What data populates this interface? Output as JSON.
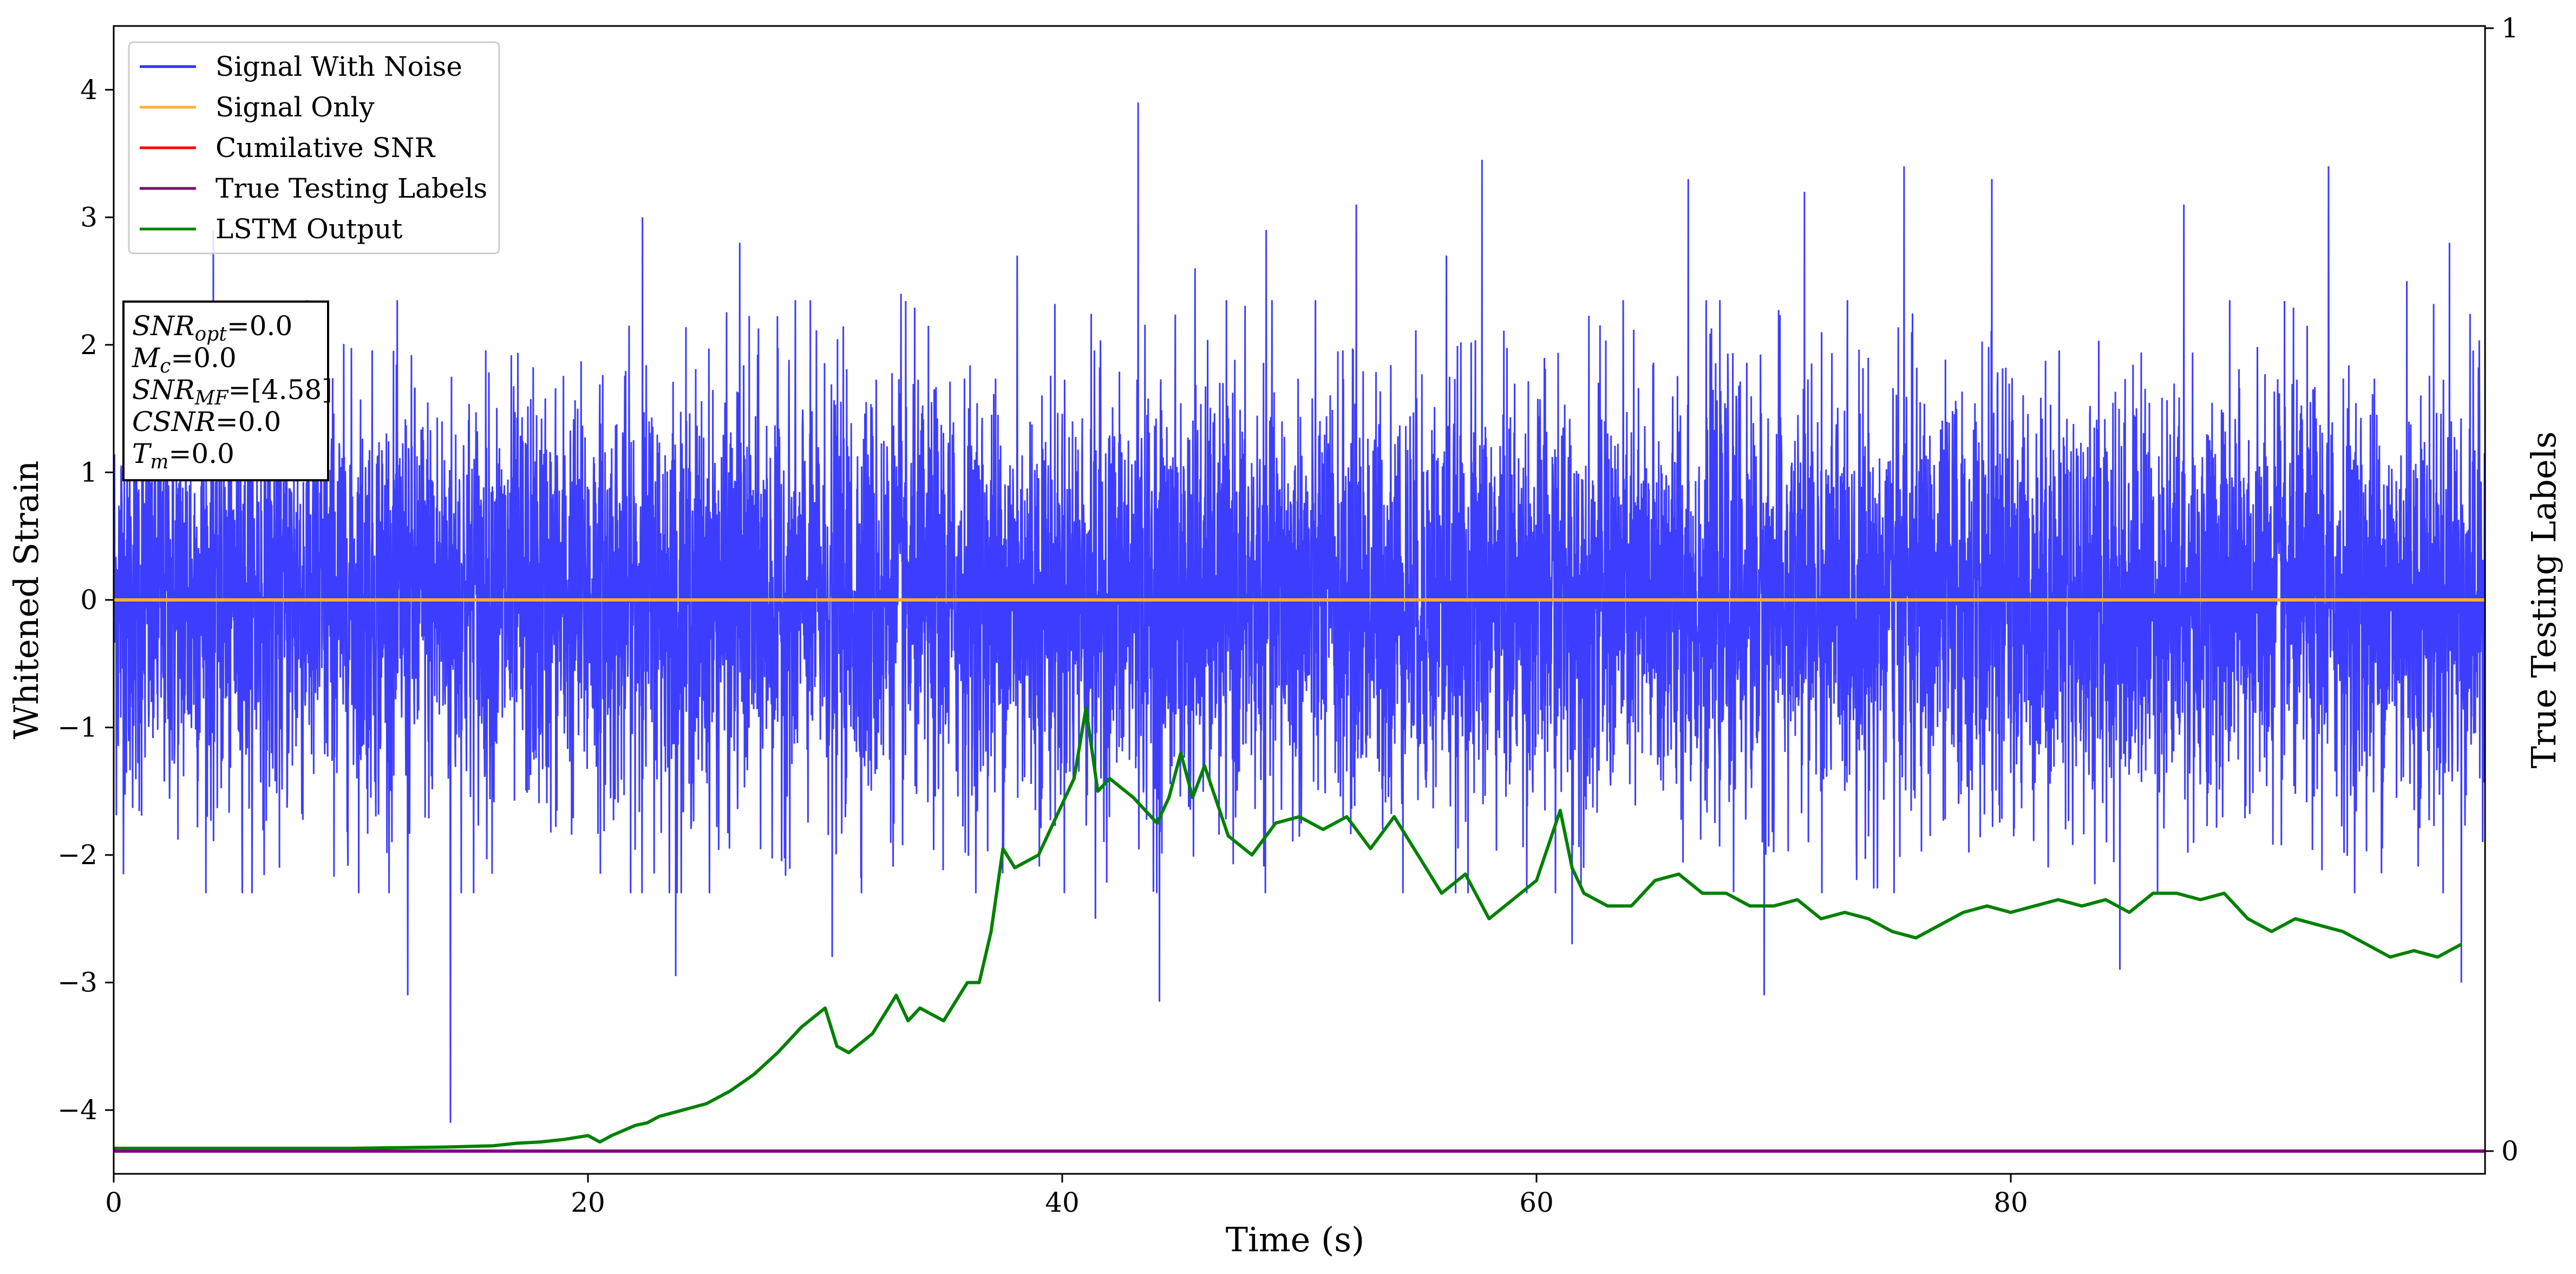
{
  "chart_data": {
    "type": "line",
    "xlabel": "Time (s)",
    "ylabel": "Whitened Strain",
    "y2label": "True Testing Labels",
    "xlim": [
      0,
      100
    ],
    "ylim": [
      -4.5,
      4.5
    ],
    "y2lim": [
      0,
      1
    ],
    "x_ticks": [
      0,
      20,
      40,
      60,
      80
    ],
    "y_ticks": [
      -4,
      -3,
      -2,
      -1,
      0,
      1,
      2,
      3,
      4
    ],
    "y_tick_labels": [
      "−4",
      "−3",
      "−2",
      "−1",
      "0",
      "1",
      "2",
      "3",
      "4"
    ],
    "y2_ticks": [
      0,
      1
    ],
    "grid": false,
    "legend_position": "upper-left",
    "legend": [
      {
        "label": "Signal With Noise",
        "color": "#3333ff"
      },
      {
        "label": "Signal Only",
        "color": "#ffb02e"
      },
      {
        "label": "Cumilative SNR",
        "color": "#ff0000"
      },
      {
        "label": "True Testing Labels",
        "color": "#800080"
      },
      {
        "label": "LSTM Output",
        "color": "#008000"
      }
    ],
    "annotation": {
      "lines": [
        {
          "sym": "SNR",
          "sub": "opt",
          "value": "=0.0"
        },
        {
          "sym": "M",
          "sub": "c",
          "value": "=0.0"
        },
        {
          "sym": "SNR",
          "sub": "MF",
          "value": "=[4.58]"
        },
        {
          "sym": "CSNR",
          "sub": "",
          "value": "=0.0"
        },
        {
          "sym": "T",
          "sub": "m",
          "value": "=0.0"
        }
      ]
    },
    "series": [
      {
        "name": "Signal With Noise",
        "axis": "left",
        "color": "#3333ff",
        "style": "dense noise, approx. range -4.1 to 3.9",
        "spikes": [
          [
            4.2,
            2.9
          ],
          [
            12.4,
            -3.1
          ],
          [
            14.2,
            -4.1
          ],
          [
            22.3,
            3.0
          ],
          [
            23.7,
            -2.95
          ],
          [
            26.4,
            2.8
          ],
          [
            30.3,
            -2.8
          ],
          [
            33.2,
            2.4
          ],
          [
            38.1,
            2.7
          ],
          [
            41.4,
            -2.5
          ],
          [
            43.2,
            3.9
          ],
          [
            44.1,
            -3.15
          ],
          [
            45.6,
            2.6
          ],
          [
            48.6,
            2.9
          ],
          [
            52.4,
            3.1
          ],
          [
            56.2,
            2.7
          ],
          [
            57.7,
            3.45
          ],
          [
            61.5,
            -2.7
          ],
          [
            66.4,
            3.3
          ],
          [
            69.6,
            -3.1
          ],
          [
            71.3,
            3.2
          ],
          [
            75.5,
            3.4
          ],
          [
            79.2,
            3.3
          ],
          [
            84.6,
            -2.9
          ],
          [
            87.3,
            3.1
          ],
          [
            93.4,
            3.4
          ],
          [
            96.7,
            2.5
          ],
          [
            98.5,
            2.8
          ],
          [
            99.0,
            -3.0
          ]
        ]
      },
      {
        "name": "Signal Only",
        "axis": "left",
        "color": "#ffb02e",
        "x": [
          0,
          100
        ],
        "y": [
          0,
          0
        ]
      },
      {
        "name": "True Testing Labels",
        "axis": "right",
        "color": "#800080",
        "x": [
          0,
          100
        ],
        "y": [
          0,
          0
        ]
      },
      {
        "name": "LSTM Output",
        "axis": "left",
        "color": "#008000",
        "x": [
          0,
          5,
          10,
          14,
          16,
          17,
          18,
          19,
          20,
          20.5,
          21,
          22,
          22.5,
          23,
          24,
          25,
          26,
          27,
          28,
          29,
          30,
          30.5,
          31,
          32,
          33,
          33.5,
          34,
          35,
          36,
          36.5,
          37,
          37.5,
          38,
          39,
          40,
          40.5,
          41,
          41.5,
          42,
          43,
          44,
          44.5,
          45,
          45.5,
          46,
          47,
          48,
          49,
          50,
          51,
          52,
          53,
          54,
          55,
          56,
          57,
          58,
          59,
          60,
          61,
          61.5,
          62,
          63,
          64,
          65,
          66,
          67,
          68,
          69,
          70,
          71,
          72,
          73,
          74,
          75,
          76,
          77,
          78,
          79,
          80,
          81,
          82,
          83,
          84,
          85,
          86,
          87,
          88,
          89,
          90,
          91,
          92,
          93,
          94,
          95,
          96,
          97,
          98,
          99
        ],
        "y": [
          -4.3,
          -4.3,
          -4.3,
          -4.29,
          -4.28,
          -4.26,
          -4.25,
          -4.23,
          -4.2,
          -4.25,
          -4.2,
          -4.12,
          -4.1,
          -4.05,
          -4.0,
          -3.95,
          -3.85,
          -3.72,
          -3.55,
          -3.35,
          -3.2,
          -3.5,
          -3.55,
          -3.4,
          -3.1,
          -3.3,
          -3.2,
          -3.3,
          -3.0,
          -3.0,
          -2.6,
          -1.95,
          -2.1,
          -2.0,
          -1.6,
          -1.4,
          -0.85,
          -1.5,
          -1.4,
          -1.55,
          -1.75,
          -1.55,
          -1.2,
          -1.55,
          -1.3,
          -1.85,
          -2.0,
          -1.75,
          -1.7,
          -1.8,
          -1.7,
          -1.95,
          -1.7,
          -2.0,
          -2.3,
          -2.15,
          -2.5,
          -2.35,
          -2.2,
          -1.65,
          -2.1,
          -2.3,
          -2.4,
          -2.4,
          -2.2,
          -2.15,
          -2.3,
          -2.3,
          -2.4,
          -2.4,
          -2.35,
          -2.5,
          -2.45,
          -2.5,
          -2.6,
          -2.65,
          -2.55,
          -2.45,
          -2.4,
          -2.45,
          -2.4,
          -2.35,
          -2.4,
          -2.35,
          -2.45,
          -2.3,
          -2.3,
          -2.35,
          -2.3,
          -2.5,
          -2.6,
          -2.5,
          -2.55,
          -2.6,
          -2.7,
          -2.8,
          -2.75,
          -2.8,
          -2.7
        ]
      }
    ]
  }
}
